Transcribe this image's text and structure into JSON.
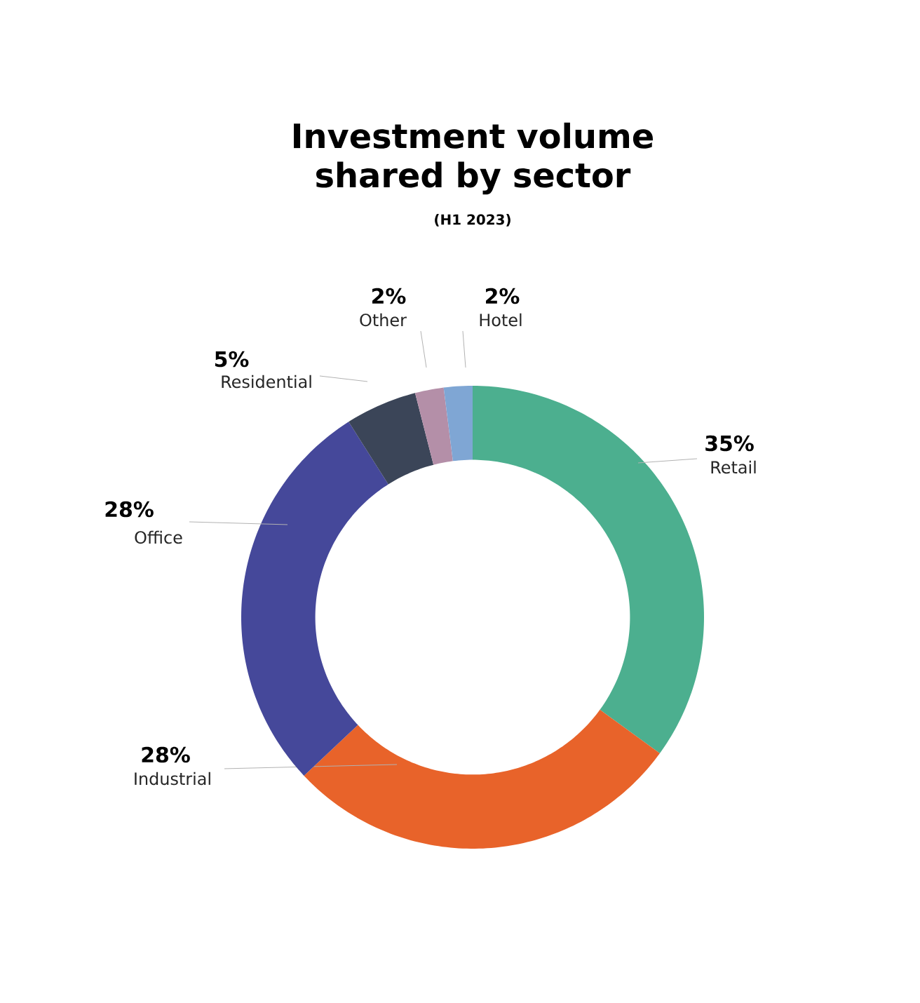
{
  "chart_data": {
    "type": "donut",
    "title": "Investment volume shared by sector",
    "subtitle": "(H1 2023)",
    "categories": [
      "Retail",
      "Industrial",
      "Office",
      "Residential",
      "Other",
      "Hotel"
    ],
    "values": [
      35,
      28,
      28,
      5,
      2,
      2
    ],
    "value_labels": [
      "35%",
      "28%",
      "28%",
      "5%",
      "2%",
      "2%"
    ],
    "colors": [
      "#4caf8f",
      "#e8632a",
      "#45489a",
      "#3b4558",
      "#b48fa8",
      "#7fa6d4"
    ]
  }
}
